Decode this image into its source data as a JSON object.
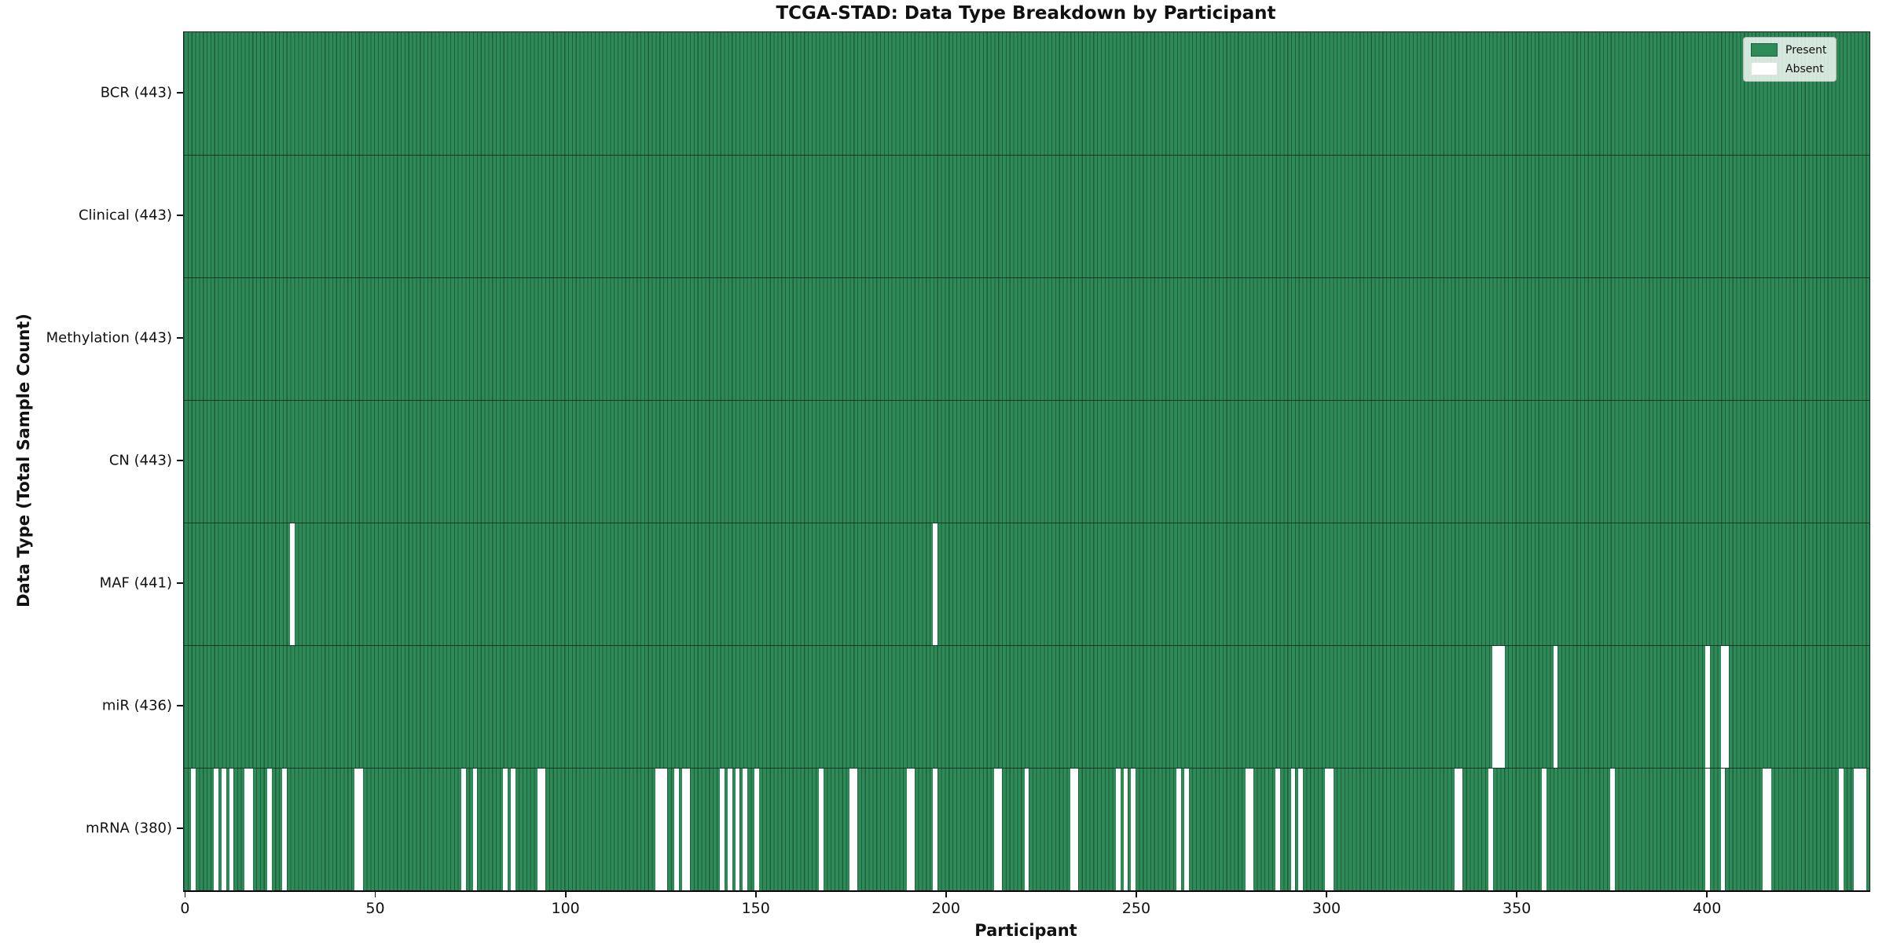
{
  "figure": {
    "title": "TCGA-STAD: Data Type Breakdown by Participant",
    "xlabel": "Participant",
    "ylabel": "Data Type (Total Sample Count)"
  },
  "legend": {
    "present_label": "Present",
    "absent_label": "Absent"
  },
  "colors": {
    "present": "#2E8B57",
    "present_edge": "#1d5e3c",
    "absent": "#FFFFFF"
  },
  "chart_data": {
    "type": "heatmap",
    "title": "TCGA-STAD: Data Type Breakdown by Participant",
    "xlabel": "Participant",
    "ylabel": "Data Type (Total Sample Count)",
    "legend": [
      "Present",
      "Absent"
    ],
    "legend_position": "upper right",
    "grid": false,
    "n_participants": 443,
    "xlim": [
      0,
      443
    ],
    "x_ticks": [
      0,
      50,
      100,
      150,
      200,
      250,
      300,
      350,
      400
    ],
    "cell_states": {
      "present": 1,
      "absent": 0
    },
    "rows": [
      {
        "name": "bcr",
        "label": "BCR (443)",
        "data_type": "BCR",
        "total_samples": 443,
        "absent_count": 0,
        "absent_participants": []
      },
      {
        "name": "clinical",
        "label": "Clinical (443)",
        "data_type": "Clinical",
        "total_samples": 443,
        "absent_count": 0,
        "absent_participants": []
      },
      {
        "name": "methylation",
        "label": "Methylation (443)",
        "data_type": "Methylation",
        "total_samples": 443,
        "absent_count": 0,
        "absent_participants": []
      },
      {
        "name": "cn",
        "label": "CN (443)",
        "data_type": "CN",
        "total_samples": 443,
        "absent_count": 0,
        "absent_participants": []
      },
      {
        "name": "maf",
        "label": "MAF (441)",
        "data_type": "MAF",
        "total_samples": 441,
        "absent_count": 2,
        "absent_participants": [
          28,
          197
        ]
      },
      {
        "name": "mir",
        "label": "miR (436)",
        "data_type": "miR",
        "total_samples": 436,
        "absent_count": 7,
        "absent_participants": [
          344,
          345,
          346,
          360,
          400,
          404,
          405
        ]
      },
      {
        "name": "mrna",
        "label": "mRNA (380)",
        "data_type": "mRNA",
        "total_samples": 380,
        "absent_count": 63,
        "absent_participants": [
          2,
          8,
          10,
          12,
          16,
          17,
          22,
          26,
          45,
          46,
          73,
          76,
          84,
          86,
          93,
          94,
          124,
          125,
          126,
          129,
          131,
          132,
          141,
          143,
          145,
          147,
          150,
          167,
          175,
          176,
          190,
          191,
          197,
          213,
          214,
          221,
          233,
          234,
          245,
          247,
          249,
          261,
          263,
          279,
          280,
          287,
          291,
          293,
          300,
          301,
          334,
          335,
          343,
          357,
          375,
          400,
          404,
          415,
          416,
          435,
          439,
          440,
          441
        ]
      }
    ]
  }
}
